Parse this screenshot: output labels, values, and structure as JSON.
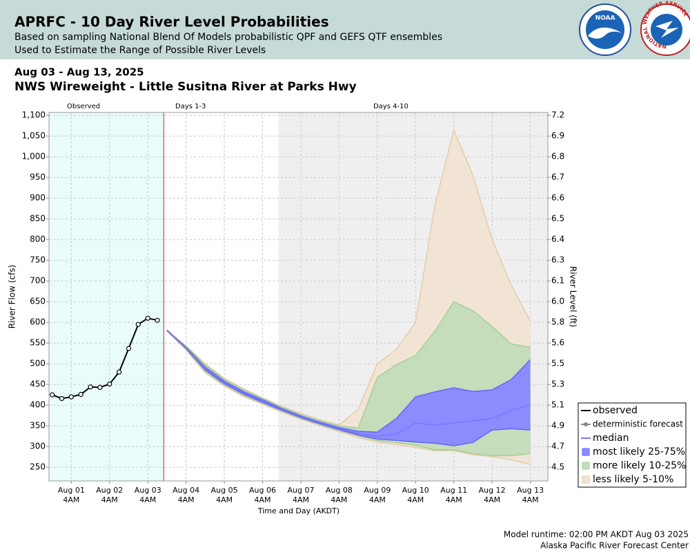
{
  "header": {
    "title": "APRFC - 10 Day River Level Probabilities",
    "subtitle_lines": [
      "Based on sampling National Blend Of Models probabilistic QPF and GEFS QTF ensembles",
      "Used to Estimate the Range of Possible River Levels"
    ],
    "logos": [
      "NOAA",
      "NATIONAL WEATHER SERVICE"
    ]
  },
  "chart_data": {
    "type": "line",
    "date_range": "Aug 03 - Aug 13, 2025",
    "title": "NWS Wireweight - Little Susitna River at Parks Hwy",
    "y_label": "River Flow (cfs)",
    "y2_label": "River Level (ft)",
    "x_label": "Time and Day (AKDT)",
    "xlim": [
      "Jul 31 2PM",
      "Aug 13 3PM"
    ],
    "xticks": [
      "Aug 01 4AM",
      "Aug 02 4AM",
      "Aug 03 4AM",
      "Aug 04 4AM",
      "Aug 05 4AM",
      "Aug 06 4AM",
      "Aug 07 4AM",
      "Aug 08 4AM",
      "Aug 09 4AM",
      "Aug 10 4AM",
      "Aug 11 4AM",
      "Aug 12 4AM",
      "Aug 13 4AM"
    ],
    "ylim": [
      217,
      1107
    ],
    "yticks": [
      250,
      300,
      350,
      400,
      450,
      500,
      550,
      600,
      650,
      700,
      750,
      800,
      850,
      900,
      950,
      {
        "value": 1000,
        "label": "1,000"
      },
      {
        "value": 1050,
        "label": "1,050"
      },
      {
        "value": 1100,
        "label": "1,100"
      }
    ],
    "y2ticks": [
      4.5,
      4.7,
      4.9,
      5.1,
      5.3,
      5.5,
      5.6,
      5.8,
      {
        "value": 6,
        "label": "6.0"
      },
      6.1,
      6.3,
      6.4,
      6.5,
      6.6,
      6.7,
      6.8,
      6.9,
      7.2
    ],
    "grid": true,
    "periods": [
      {
        "label": "Observed",
        "end": "Aug 03 2PM",
        "color": "#e9fbfb"
      },
      {
        "label": "Days 1-3",
        "end": "Aug 06 2PM",
        "color": "#ffffff"
      },
      {
        "label": "Days 4-10",
        "color": "#efefef"
      }
    ],
    "forecast_line_color": "#cc2222",
    "x_observed": [
      "Jul 31 4PM",
      "Jul 31 10PM",
      "Aug 01 4AM",
      "Aug 01 10AM",
      "Aug 01 4PM",
      "Aug 01 10PM",
      "Aug 02 4AM",
      "Aug 02 10AM",
      "Aug 02 4PM",
      "Aug 02 10PM",
      "Aug 03 4AM",
      "Aug 03 10AM"
    ],
    "observed": {
      "name": "observed",
      "color": "#000000",
      "values": [
        425,
        416,
        420,
        426,
        444,
        443,
        451,
        480,
        537,
        595,
        610,
        605
      ]
    },
    "x_forecast": [
      "Aug 03 4PM",
      "Aug 04 4AM",
      "Aug 04 4PM",
      "Aug 05 4AM",
      "Aug 05 4PM",
      "Aug 06 4AM",
      "Aug 06 4PM",
      "Aug 07 4AM",
      "Aug 07 4PM",
      "Aug 08 4AM",
      "Aug 08 4PM",
      "Aug 09 4AM",
      "Aug 09 4PM",
      "Aug 10 4AM",
      "Aug 10 4PM",
      "Aug 11 4AM",
      "Aug 11 4PM",
      "Aug 12 4AM",
      "Aug 12 4PM",
      "Aug 13 4AM"
    ],
    "bands": [
      {
        "name": "less likely 5-10%",
        "color": "#f1e4d5",
        "edge": "#e5cba9",
        "upper": [
          580,
          543,
          500,
          465,
          440,
          418,
          397,
          380,
          365,
          352,
          390,
          500,
          535,
          600,
          880,
          1065,
          955,
          800,
          690,
          603
        ],
        "lower": [
          580,
          533,
          478,
          446,
          421,
          402,
          383,
          366,
          351,
          336,
          322,
          310,
          305,
          298,
          290,
          290,
          280,
          276,
          268,
          257
        ]
      },
      {
        "name": "more likely 10-25%",
        "color": "#c5ddbb",
        "edge": "#a5cf95",
        "upper": [
          580,
          542,
          497,
          462,
          437,
          416,
          395,
          377,
          362,
          350,
          345,
          467,
          498,
          520,
          578,
          650,
          628,
          590,
          548,
          540
        ],
        "lower": [
          580,
          535,
          482,
          449,
          424,
          405,
          386,
          368,
          353,
          339,
          326,
          314,
          310,
          303,
          292,
          292,
          283,
          278,
          278,
          283
        ]
      },
      {
        "name": "most likely 25-75%",
        "color": "#8c8cff",
        "edge": "#6464ff",
        "upper": [
          580,
          540,
          492,
          458,
          433,
          413,
          392,
          374,
          359,
          346,
          337,
          335,
          368,
          420,
          432,
          442,
          433,
          437,
          462,
          510
        ],
        "lower": [
          580,
          537,
          485,
          452,
          427,
          407,
          388,
          370,
          355,
          341,
          328,
          318,
          315,
          311,
          308,
          302,
          310,
          340,
          343,
          340
        ]
      }
    ],
    "series": [
      {
        "name": "deterministic forecast",
        "color": "#888888",
        "values": [
          582,
          540,
          490,
          null,
          null,
          null,
          null,
          null,
          null,
          null,
          null,
          null,
          null,
          null,
          null,
          null,
          null,
          null,
          null,
          null
        ]
      },
      {
        "name": "median",
        "color": "#7777ff",
        "values": [
          580,
          538,
          488,
          455,
          430,
          410,
          390,
          372,
          357,
          343,
          332,
          325,
          330,
          357,
          352,
          357,
          362,
          368,
          388,
          400
        ]
      }
    ]
  },
  "footer": [
    "Model runtime: 02:00 PM AKDT Aug 03 2025",
    "Alaska Pacific River Forecast Center"
  ]
}
